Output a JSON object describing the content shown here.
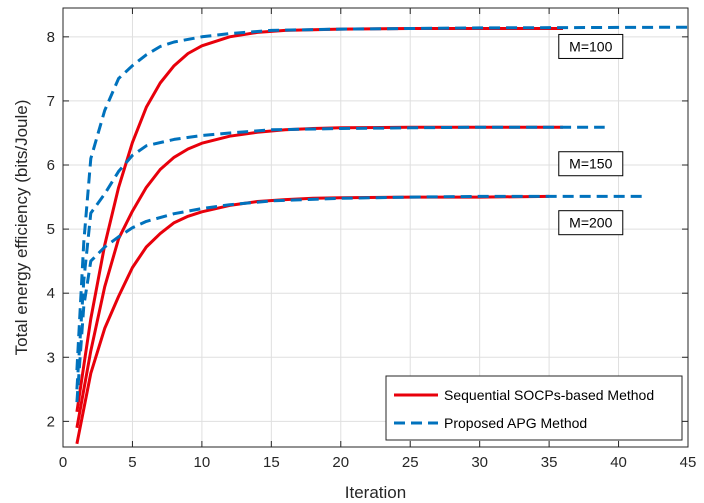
{
  "chart_data": {
    "type": "line",
    "title": "",
    "xlabel": "Iteration",
    "ylabel": "Total energy efficiency (bits/Joule)",
    "xlim": [
      0,
      45
    ],
    "ylim": [
      1.6,
      8.45
    ],
    "xticks": [
      0,
      5,
      10,
      15,
      20,
      25,
      30,
      35,
      40,
      45
    ],
    "yticks": [
      2,
      3,
      4,
      5,
      6,
      7,
      8
    ],
    "grid": true,
    "legend": {
      "placement": "bottom-right",
      "entries": [
        {
          "label": "Sequential SOCPs-based Method",
          "style": "solid",
          "color": "#e8000b"
        },
        {
          "label": "Proposed APG Method",
          "style": "dashed",
          "color": "#0072bd"
        }
      ]
    },
    "annotations": [
      {
        "text": "M=100",
        "x": 38,
        "y": 7.85
      },
      {
        "text": "M=150",
        "x": 38,
        "y": 6.02
      },
      {
        "text": "M=200",
        "x": 38,
        "y": 5.1
      }
    ],
    "series": [
      {
        "group": "M=100",
        "method": "Sequential SOCPs-based Method",
        "style": "solid",
        "color": "#e8000b",
        "x": [
          1,
          2,
          3,
          4,
          5,
          6,
          7,
          8,
          9,
          10,
          12,
          14,
          16,
          18,
          20,
          25,
          30,
          36
        ],
        "y": [
          2.15,
          3.6,
          4.75,
          5.65,
          6.35,
          6.9,
          7.28,
          7.55,
          7.74,
          7.86,
          8.0,
          8.07,
          8.1,
          8.11,
          8.12,
          8.13,
          8.13,
          8.13
        ]
      },
      {
        "group": "M=100",
        "method": "Proposed APG Method",
        "style": "dashed",
        "color": "#0072bd",
        "x": [
          1,
          1.5,
          2,
          3,
          4,
          5,
          6,
          7,
          8,
          10,
          12,
          15,
          20,
          30,
          45
        ],
        "y": [
          2.8,
          4.8,
          6.1,
          6.85,
          7.35,
          7.55,
          7.72,
          7.85,
          7.92,
          8.0,
          8.05,
          8.1,
          8.12,
          8.14,
          8.15
        ]
      },
      {
        "group": "M=150",
        "method": "Sequential SOCPs-based Method",
        "style": "solid",
        "color": "#e8000b",
        "x": [
          1,
          2,
          3,
          4,
          5,
          6,
          7,
          8,
          9,
          10,
          12,
          14,
          16,
          18,
          20,
          25,
          30,
          36
        ],
        "y": [
          1.9,
          3.1,
          4.1,
          4.85,
          5.28,
          5.65,
          5.93,
          6.12,
          6.25,
          6.34,
          6.45,
          6.51,
          6.55,
          6.57,
          6.58,
          6.59,
          6.59,
          6.59
        ]
      },
      {
        "group": "M=150",
        "method": "Proposed APG Method",
        "style": "dashed",
        "color": "#0072bd",
        "x": [
          1,
          1.5,
          2,
          3,
          4,
          5,
          6,
          8,
          10,
          12,
          15,
          20,
          25,
          30,
          39
        ],
        "y": [
          2.5,
          4.2,
          5.25,
          5.55,
          5.9,
          6.15,
          6.3,
          6.4,
          6.46,
          6.5,
          6.55,
          6.57,
          6.58,
          6.59,
          6.59
        ]
      },
      {
        "group": "M=200",
        "method": "Sequential SOCPs-based Method",
        "style": "solid",
        "color": "#e8000b",
        "x": [
          1,
          2,
          3,
          4,
          5,
          6,
          7,
          8,
          9,
          10,
          12,
          14,
          16,
          18,
          20,
          25,
          30,
          35
        ],
        "y": [
          1.65,
          2.75,
          3.45,
          3.95,
          4.4,
          4.72,
          4.93,
          5.1,
          5.2,
          5.27,
          5.37,
          5.43,
          5.46,
          5.48,
          5.49,
          5.5,
          5.5,
          5.51
        ]
      },
      {
        "group": "M=200",
        "method": "Proposed APG Method",
        "style": "dashed",
        "color": "#0072bd",
        "x": [
          1,
          1.5,
          2,
          3,
          4,
          5,
          6,
          8,
          10,
          12,
          15,
          20,
          25,
          30,
          35,
          42
        ],
        "y": [
          2.3,
          3.8,
          4.5,
          4.72,
          4.88,
          5.02,
          5.12,
          5.24,
          5.32,
          5.38,
          5.44,
          5.48,
          5.5,
          5.51,
          5.51,
          5.51
        ]
      }
    ]
  }
}
